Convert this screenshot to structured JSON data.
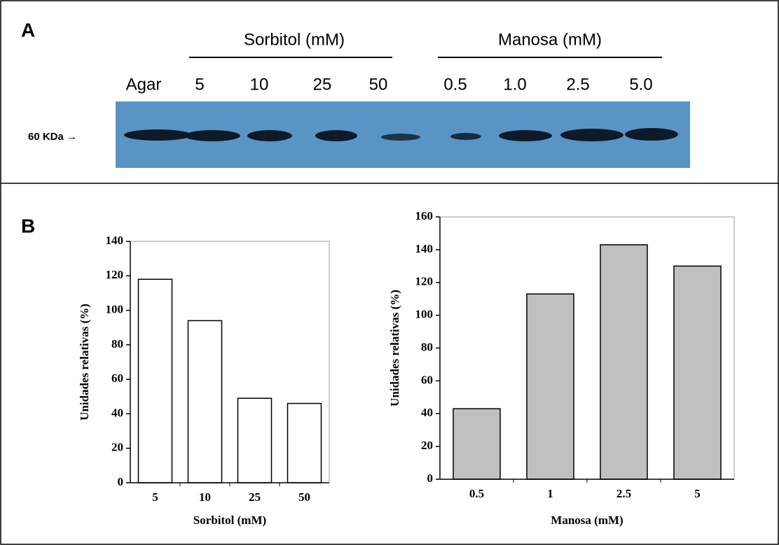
{
  "panel_a": {
    "label": "A",
    "groups": [
      {
        "label": "Sorbitol (mM)"
      },
      {
        "label": "Manosa (mM)"
      }
    ],
    "lanes": [
      "Agar",
      "5",
      "10",
      "25",
      "50",
      "0.5",
      "1.0",
      "2.5",
      "5.0"
    ],
    "marker": "60 KDa →"
  },
  "panel_b": {
    "label": "B"
  },
  "chart_data": [
    {
      "type": "bar",
      "categories": [
        "5",
        "10",
        "25",
        "50"
      ],
      "values": [
        118,
        94,
        49,
        46
      ],
      "color": "#ffffff",
      "x_label": "Sorbitol (mM)",
      "y_label": "Unidades relativas (%)",
      "ylim": [
        0,
        140
      ],
      "yticks": [
        0,
        20,
        40,
        60,
        80,
        100,
        120,
        140
      ]
    },
    {
      "type": "bar",
      "categories": [
        "0.5",
        "1",
        "2.5",
        "5"
      ],
      "values": [
        43,
        113,
        143,
        130
      ],
      "color": "#c0c0c0",
      "x_label": "Manosa (mM)",
      "y_label": "Unidades relativas (%)",
      "ylim": [
        0,
        160
      ],
      "yticks": [
        0,
        20,
        40,
        60,
        80,
        100,
        120,
        140,
        160
      ]
    }
  ]
}
